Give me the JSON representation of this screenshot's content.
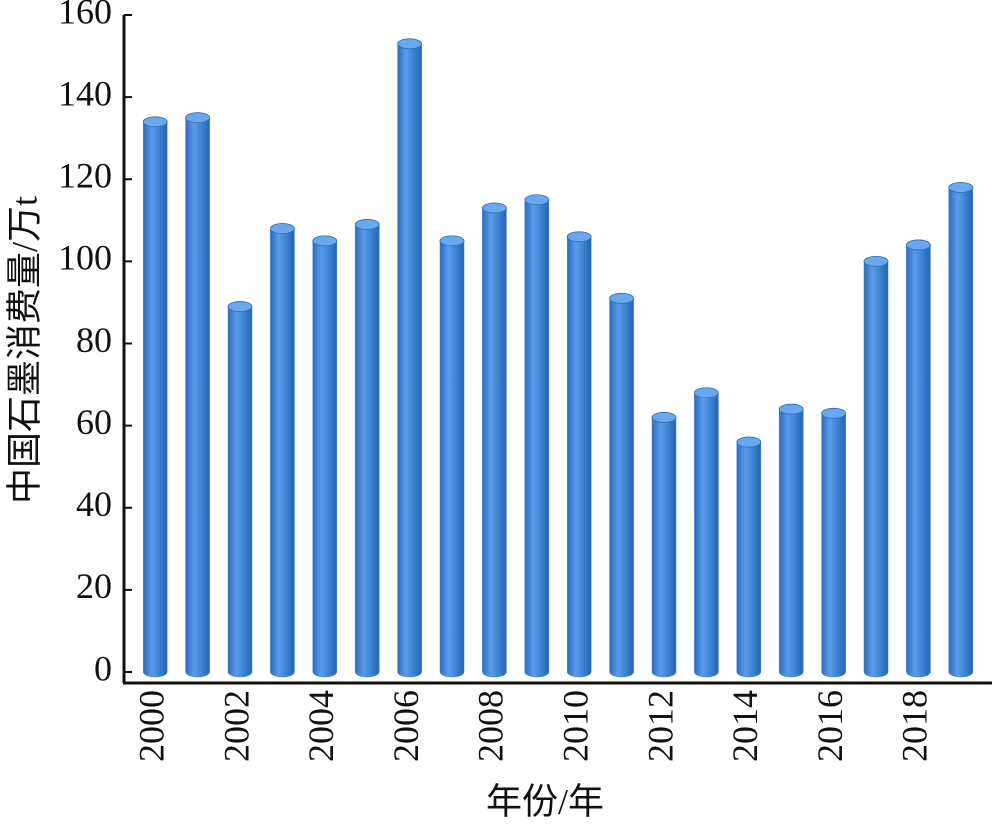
{
  "chart_data": {
    "type": "bar",
    "x_label": "年份/年",
    "y_label": "中国石墨消费量/万t",
    "categories": [
      "2000",
      null,
      "2002",
      null,
      "2004",
      null,
      "2006",
      null,
      "2008",
      null,
      "2010",
      null,
      "2012",
      null,
      "2014",
      null,
      "2016",
      null,
      "2018",
      null
    ],
    "values": [
      134,
      135,
      89,
      108,
      105,
      109,
      153,
      105,
      113,
      115,
      106,
      91,
      62,
      68,
      56,
      64,
      63,
      100,
      104,
      118
    ],
    "color": "#3f86d6",
    "ylim": [
      0,
      160
    ],
    "yticks": [
      0,
      20,
      40,
      60,
      80,
      100,
      120,
      140,
      160
    ],
    "grid": false
  }
}
